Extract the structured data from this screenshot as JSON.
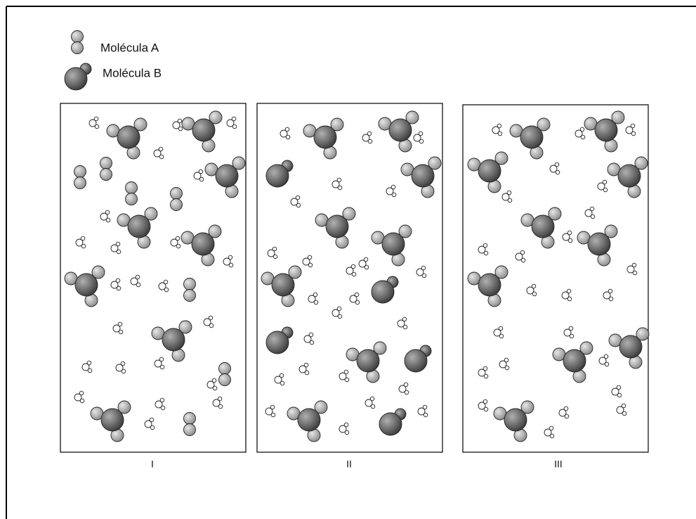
{
  "legend": [
    {
      "label": "Molécula A"
    },
    {
      "label": "Molécula B"
    }
  ],
  "panels": [
    {
      "label": "I"
    },
    {
      "label": "II"
    },
    {
      "label": "III"
    }
  ]
}
